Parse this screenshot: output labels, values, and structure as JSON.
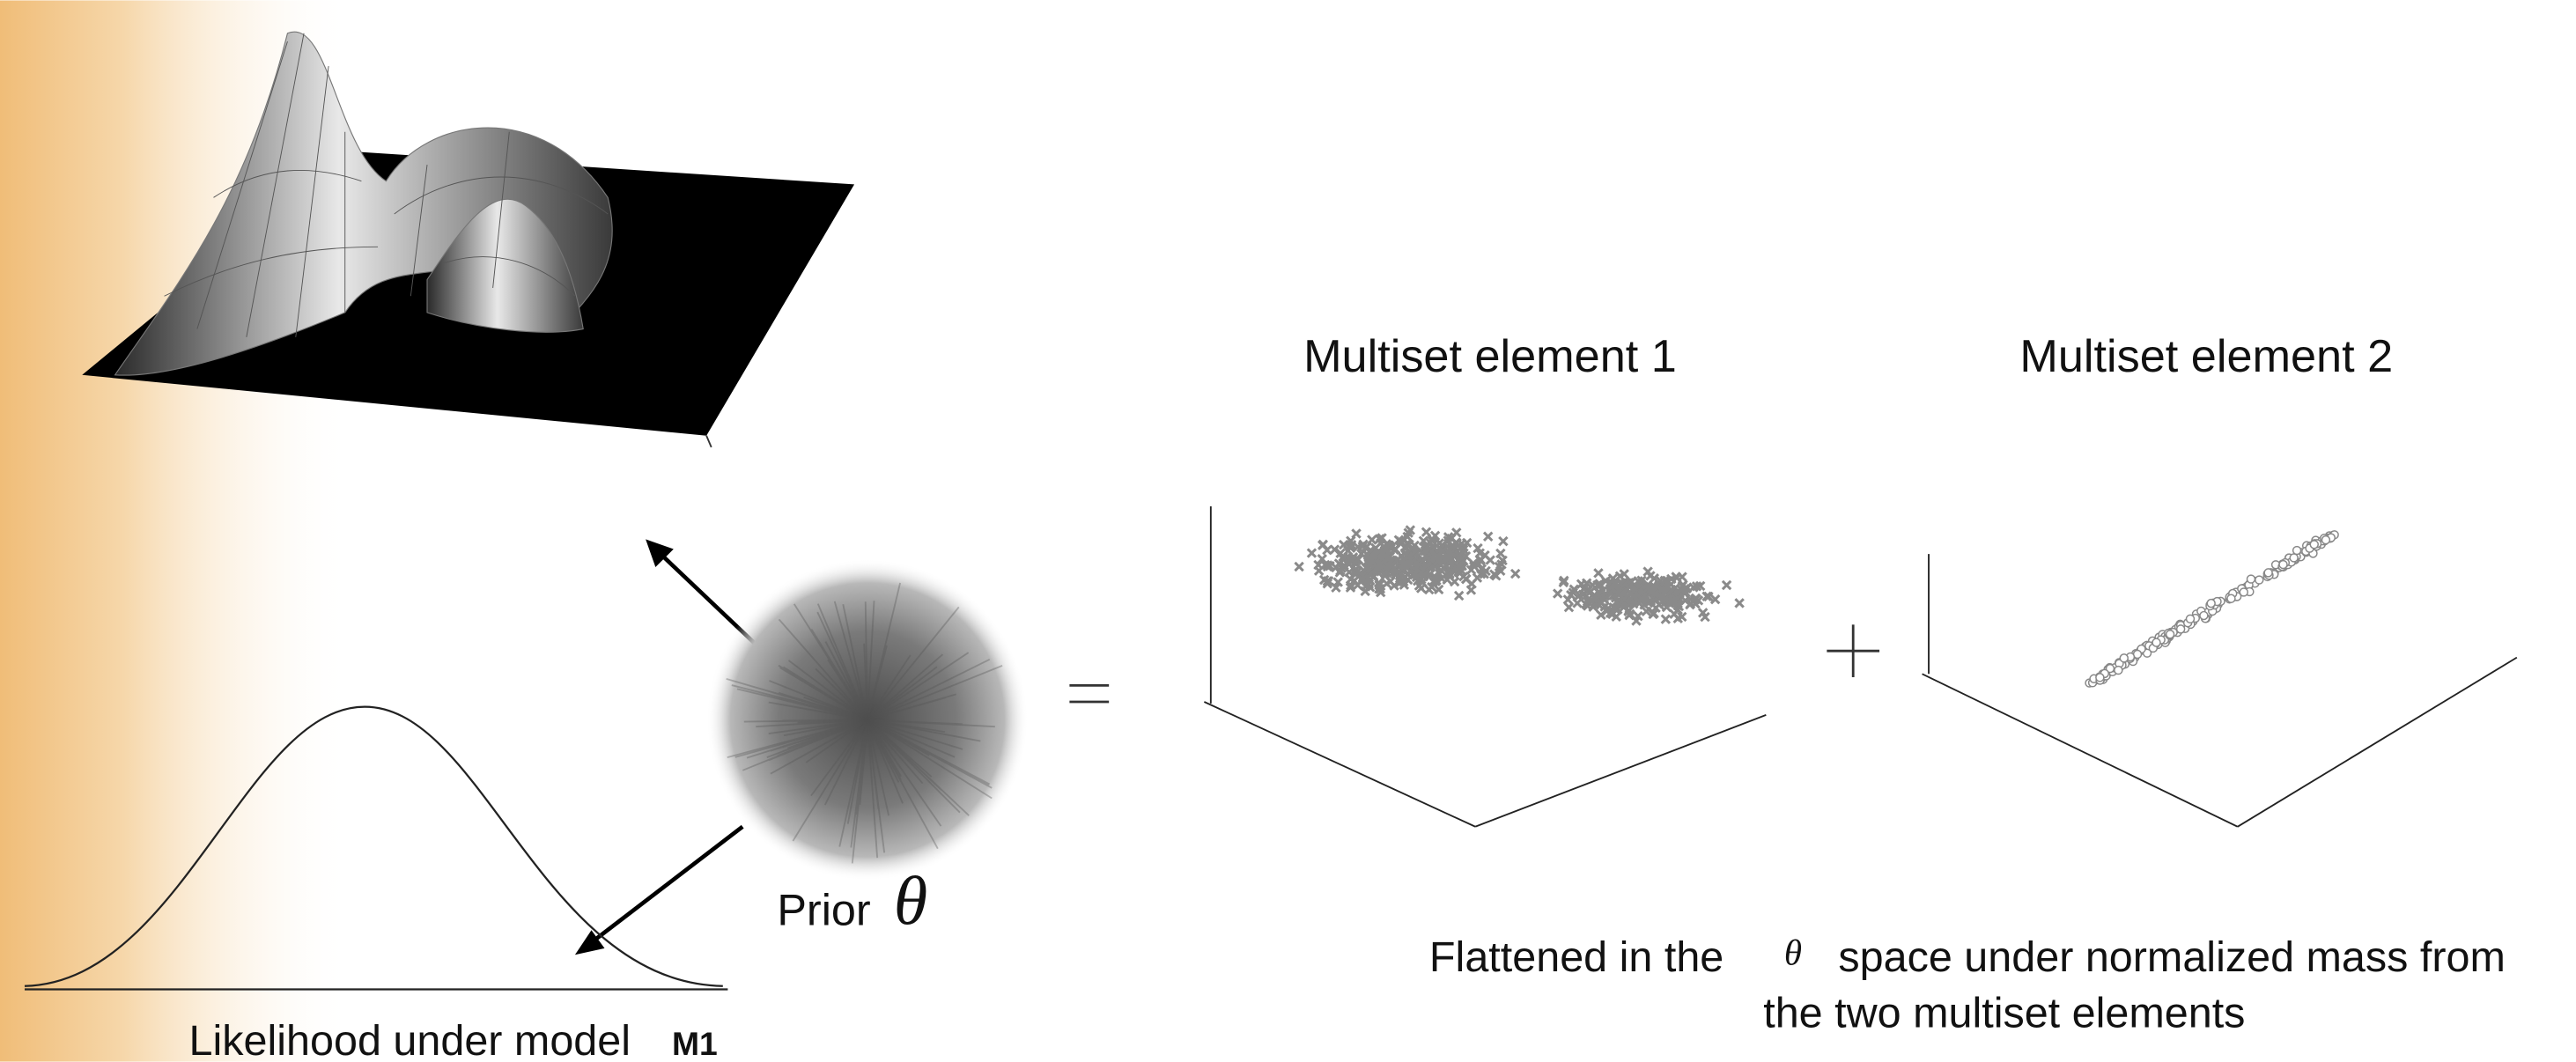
{
  "titles": {
    "element_1": "Multiset element 1",
    "element_2": "Multiset element 2"
  },
  "prior": {
    "label": "Prior",
    "symbol": "θ"
  },
  "likelihood": {
    "label": "Likelihood under model",
    "model": "M1"
  },
  "caption": {
    "line_1_before": "Flattened in the",
    "symbol": "θ",
    "line_1_after": "space under normalized mass from",
    "line_2": "the two multiset elements"
  }
}
